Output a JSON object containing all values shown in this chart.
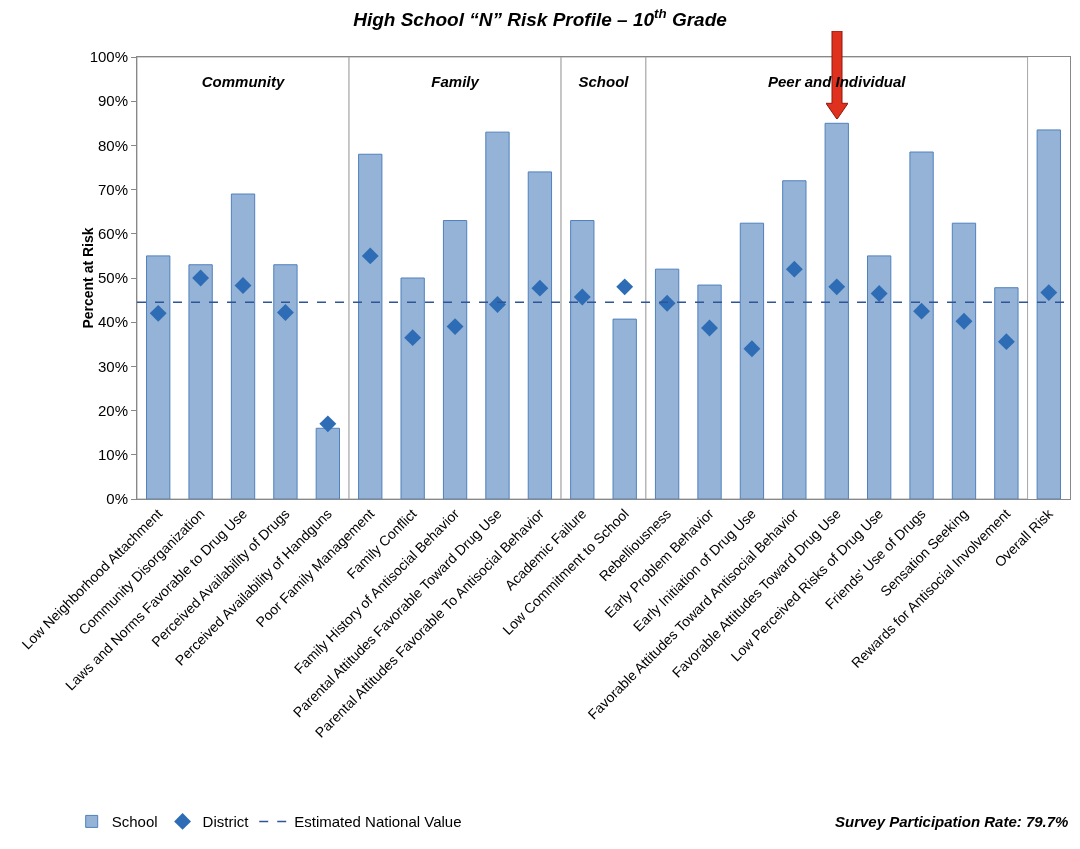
{
  "chart_data": {
    "type": "bar",
    "title": "High School “N” Risk Profile – 10$^{th}$ Grade",
    "ylabel": "Percent at Risk",
    "categories": [
      "Low Neighborhood Attachment",
      "Community Disorganization",
      "Laws and Norms Favorable to Drug Use",
      "Perceived Availability of Drugs",
      "Perceived Availability of Handguns",
      "Poor Family Management",
      "Family Conflict",
      "Family History of Antisocial Behavior",
      "Parental Attitudes Favorable Toward Drug Use",
      "Parental Attitudes Favorable To Antisocial Behavior",
      "Academic Failure",
      "Low Commitment to School",
      "Rebelliousness",
      "Early Problem Behavior",
      "Early Initiation of Drug Use",
      "Favorable Attitudes Toward Antisocial Behavior",
      "Favorable Attitudes Toward Drug Use",
      "Low Perceived Risks of Drug Use",
      "Friends' Use of Drugs",
      "Sensation Seeking",
      "Rewards for Antisocial Involvement",
      "Overall Risk"
    ],
    "series": [
      {
        "name": "School",
        "color": "#95b3d7",
        "values": [
          55,
          53,
          69,
          53,
          16,
          78,
          50,
          63,
          83,
          74,
          63,
          40.7,
          52,
          48.4,
          62.4,
          72,
          85,
          55,
          78.5,
          62.4,
          47.8,
          83.5
        ]
      },
      {
        "name": "District",
        "type": "scatter",
        "color": "#2e6db5",
        "values": [
          42,
          50,
          48.3,
          42.2,
          17,
          55,
          36.5,
          39,
          44,
          47.7,
          45.7,
          48,
          44.3,
          38.7,
          34,
          52,
          48,
          46.5,
          42.5,
          40.2,
          35.6,
          46.7
        ]
      }
    ],
    "marker": "diamond",
    "ylim": [
      0,
      100
    ],
    "yticks": [
      {
        "value": 0,
        "label": "0%"
      },
      {
        "value": 10,
        "label": "10%"
      },
      {
        "value": 20,
        "label": "20%"
      },
      {
        "value": 30,
        "label": "30%"
      },
      {
        "value": 40,
        "label": "40%"
      },
      {
        "value": 50,
        "label": "50%"
      },
      {
        "value": 60,
        "label": "60%"
      },
      {
        "value": 70,
        "label": "70%"
      },
      {
        "value": 80,
        "label": "80%"
      },
      {
        "value": 90,
        "label": "90%"
      },
      {
        "value": 100,
        "label": "100%"
      }
    ],
    "ref_lines": [
      {
        "axis": "y",
        "value": 44.5,
        "label": "Estimated National Value",
        "color": "#2f5597",
        "line_style": "dashed"
      }
    ],
    "bands": [
      {
        "axis": "x",
        "from": "Low Neighborhood Attachment",
        "to": "Perceived Availability of Handguns",
        "label": "Community",
        "color": "#ffffff"
      },
      {
        "axis": "x",
        "from": "Poor Family Management",
        "to": "Parental Attitudes Favorable To Antisocial Behavior",
        "label": "Family",
        "color": "#ffffff"
      },
      {
        "axis": "x",
        "from": "Academic Failure",
        "to": "Low Commitment to School",
        "label": "School",
        "color": "#ffffff"
      },
      {
        "axis": "x",
        "from": "Rebelliousness",
        "to": "Rewards for Antisocial Involvement",
        "label": "Peer and Individual",
        "color": "#ffffff"
      }
    ],
    "annotations": [
      "Survey Participation Rate: 79.7%"
    ],
    "legend": "bottom left",
    "grid": false
  }
}
